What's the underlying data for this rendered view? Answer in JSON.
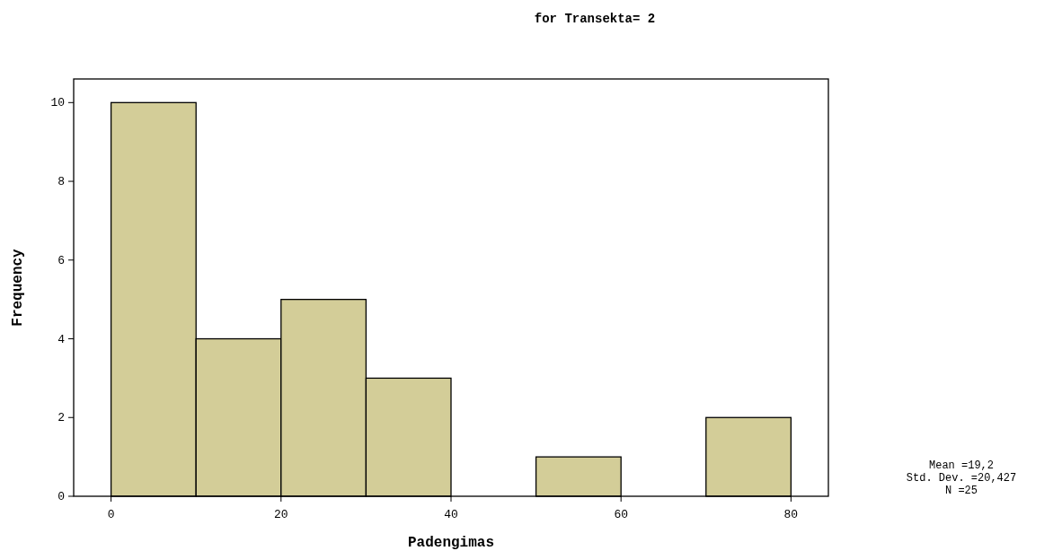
{
  "chart_data": {
    "type": "histogram",
    "title": "for Transekta= 2",
    "xlabel": "Padengimas",
    "ylabel": "Frequency",
    "bins": [
      0,
      10,
      20,
      30,
      40,
      50,
      60,
      70,
      80
    ],
    "values": [
      10,
      4,
      5,
      3,
      0,
      1,
      0,
      2
    ],
    "color": "#d3cd98",
    "xlim": [
      -4.4,
      84.4
    ],
    "xticks": [
      0,
      20,
      40,
      60,
      80
    ],
    "ylim": [
      0,
      10.6
    ],
    "yticks": [
      0,
      2,
      4,
      6,
      8,
      10
    ],
    "grid": false,
    "annotations": [
      "Mean =19,2",
      "Std. Dev. =20,427",
      "N =25"
    ]
  }
}
